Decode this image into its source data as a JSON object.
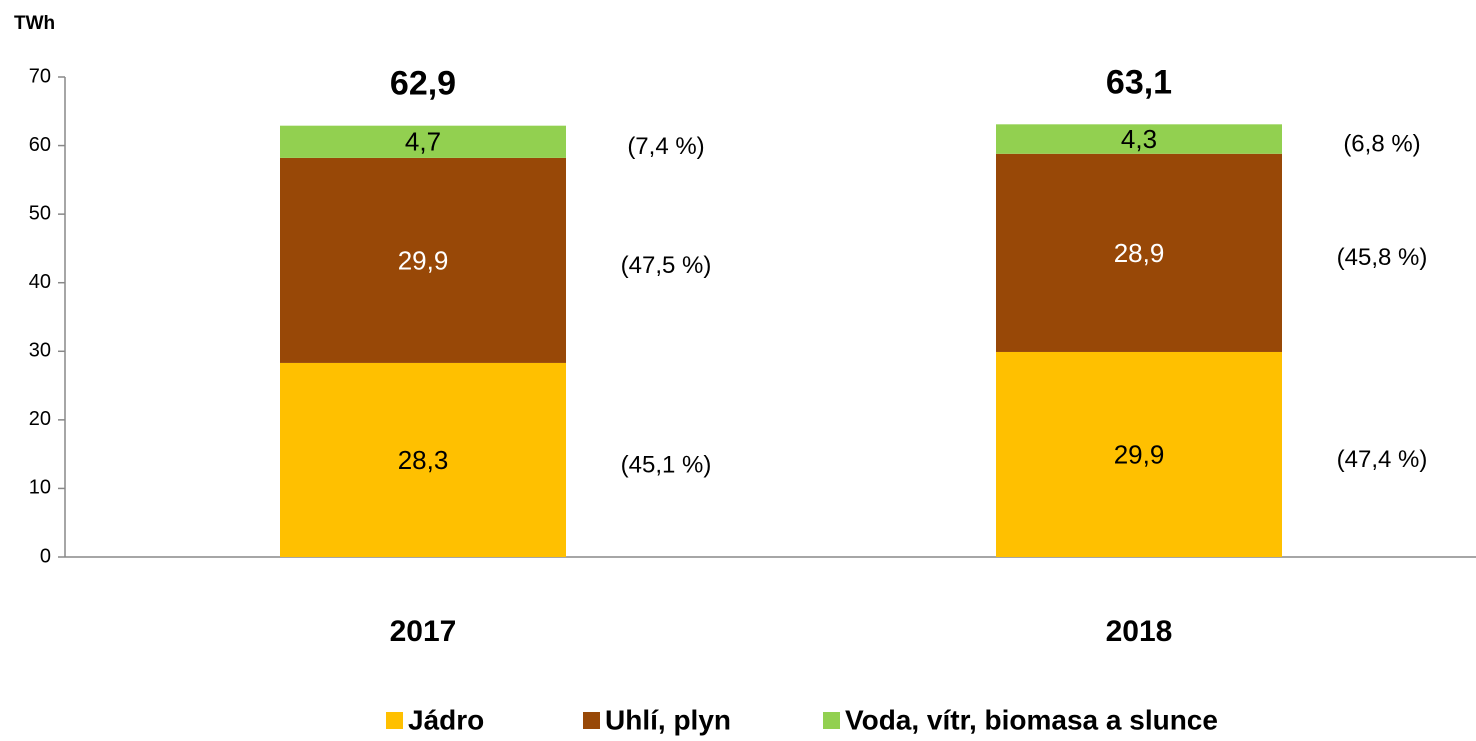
{
  "chart_data": {
    "type": "stacked_bar",
    "y_label": "TWh",
    "categories": [
      "2017",
      "2018"
    ],
    "series": [
      {
        "name": "Jádro",
        "color": "#ffc000",
        "label_color": "#000000",
        "values": [
          28.3,
          29.9
        ],
        "value_labels": [
          "28,3",
          "29,9"
        ],
        "share_labels": [
          "(45,1 %)",
          "(47,4 %)"
        ]
      },
      {
        "name": "Uhlí, plyn",
        "color": "#984807",
        "label_color": "#ffffff",
        "values": [
          29.9,
          28.9
        ],
        "value_labels": [
          "29,9",
          "28,9"
        ],
        "share_labels": [
          "(47,5 %)",
          "(45,8 %)"
        ]
      },
      {
        "name": "Voda, vítr, biomasa a slunce",
        "color": "#92d050",
        "label_color": "#000000",
        "values": [
          4.7,
          4.3
        ],
        "value_labels": [
          "4,7",
          "4,3"
        ],
        "share_labels": [
          "(7,4 %)",
          "(6,8 %)"
        ]
      }
    ],
    "totals": [
      62.9,
      63.1
    ],
    "total_labels": [
      "62,9",
      "63,1"
    ],
    "ylim": [
      0,
      70
    ],
    "yticks": [
      0,
      10,
      20,
      30,
      40,
      50,
      60,
      70
    ],
    "grid": false,
    "legend": "bottom"
  }
}
